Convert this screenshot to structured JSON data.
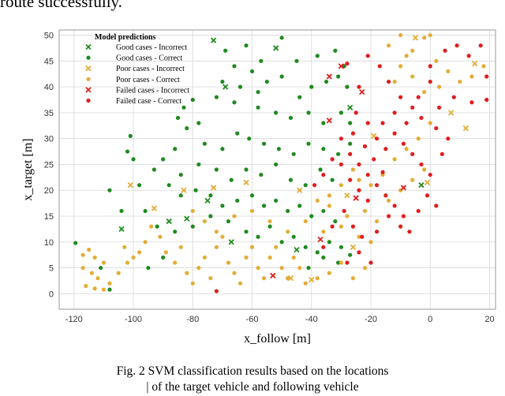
{
  "page": {
    "top_text": "route successfully.",
    "caption_line1": "Fig. 2 SVM classification results based on the locations",
    "caption_line2": "| of the target vehicle and following vehicle"
  },
  "colors": {
    "good": "#1f8a1f",
    "poor": "#e3ad35",
    "failed": "#e11d1d",
    "grid": "#d8d8d8",
    "frame": "#9a9a9a"
  },
  "chart_data": {
    "type": "scatter",
    "xlabel": "x_follow [m]",
    "ylabel": "x_target [m]",
    "xlim": [
      -125,
      22
    ],
    "ylim": [
      -3,
      51
    ],
    "xticks": [
      -120,
      -100,
      -80,
      -60,
      -40,
      -20,
      0,
      20
    ],
    "yticks": [
      0,
      5,
      10,
      15,
      20,
      25,
      30,
      35,
      40,
      45,
      50
    ],
    "grid": true,
    "legend": {
      "title": "Model predictions",
      "position": "top-left"
    },
    "series": [
      {
        "name": "Good cases - Incorrect",
        "marker": "x",
        "color": "#1f8a1f",
        "points": [
          [
            -73,
            49
          ],
          [
            -104,
            12.5
          ],
          [
            -69,
            40
          ],
          [
            -75,
            18
          ],
          [
            -82,
            14.5
          ],
          [
            -88,
            14
          ],
          [
            -67,
            10
          ],
          [
            -45,
            8.5
          ],
          [
            -27,
            36
          ],
          [
            -3,
            21
          ],
          [
            -52,
            47.5
          ]
        ]
      },
      {
        "name": "Good cases - Correct",
        "marker": "dot",
        "color": "#1f8a1f",
        "points": [
          [
            -69,
            47
          ],
          [
            -66,
            44
          ],
          [
            -62,
            48
          ],
          [
            -60,
            43
          ],
          [
            -57,
            45
          ],
          [
            -50,
            49.5
          ],
          [
            -45,
            45
          ],
          [
            -38,
            46
          ],
          [
            -32,
            47
          ],
          [
            -29,
            44
          ],
          [
            -70,
            41
          ],
          [
            -64,
            40
          ],
          [
            -58,
            39
          ],
          [
            -55,
            41
          ],
          [
            -50,
            42
          ],
          [
            -44,
            38
          ],
          [
            -40,
            40
          ],
          [
            -35,
            41
          ],
          [
            -31,
            42
          ],
          [
            -28,
            40
          ],
          [
            -72,
            38
          ],
          [
            -66,
            37
          ],
          [
            -58,
            36
          ],
          [
            -52,
            35
          ],
          [
            -47,
            34
          ],
          [
            -41,
            35
          ],
          [
            -36,
            33
          ],
          [
            -30,
            35
          ],
          [
            -27,
            33
          ],
          [
            -78,
            33
          ],
          [
            -82,
            32
          ],
          [
            -76,
            29
          ],
          [
            -70,
            28
          ],
          [
            -65,
            31
          ],
          [
            -61,
            30
          ],
          [
            -56,
            29
          ],
          [
            -51,
            28
          ],
          [
            -46,
            27
          ],
          [
            -41,
            29
          ],
          [
            -36,
            28
          ],
          [
            -31,
            27
          ],
          [
            -27,
            29
          ],
          [
            -86,
            28
          ],
          [
            -90,
            26
          ],
          [
            -84,
            23
          ],
          [
            -78,
            25
          ],
          [
            -72,
            24
          ],
          [
            -67,
            22
          ],
          [
            -62,
            24
          ],
          [
            -57,
            23
          ],
          [
            -52,
            25
          ],
          [
            -47,
            22
          ],
          [
            -42,
            21
          ],
          [
            -37,
            24
          ],
          [
            -33,
            22
          ],
          [
            -101,
            30.5
          ],
          [
            -102,
            27.5
          ],
          [
            -100,
            26
          ],
          [
            -108,
            20
          ],
          [
            -98,
            21
          ],
          [
            -93,
            24
          ],
          [
            -88,
            21
          ],
          [
            -84,
            19
          ],
          [
            -79,
            20
          ],
          [
            -74,
            19
          ],
          [
            -70,
            17
          ],
          [
            -65,
            18
          ],
          [
            -60,
            19
          ],
          [
            -56,
            17
          ],
          [
            -52,
            18
          ],
          [
            -48,
            16
          ],
          [
            -44,
            17
          ],
          [
            -40,
            15
          ],
          [
            -36,
            16
          ],
          [
            -32,
            14
          ],
          [
            -96,
            16
          ],
          [
            -92,
            13
          ],
          [
            -86,
            12
          ],
          [
            -80,
            13
          ],
          [
            -74,
            15
          ],
          [
            -68,
            14
          ],
          [
            -62,
            12
          ],
          [
            -58,
            11
          ],
          [
            -54,
            13
          ],
          [
            -50,
            10
          ],
          [
            -46,
            11
          ],
          [
            -42,
            9
          ],
          [
            -38,
            8
          ],
          [
            -34,
            10
          ],
          [
            -30,
            9
          ],
          [
            -27,
            7.5
          ],
          [
            -119.5,
            9.8
          ],
          [
            -104,
            16
          ],
          [
            -111,
            5
          ],
          [
            -108,
            0.8
          ],
          [
            -95,
            5
          ],
          [
            -90,
            7
          ],
          [
            -48,
            3
          ],
          [
            -41,
            5
          ],
          [
            -36,
            7
          ],
          [
            -31,
            6
          ],
          [
            -83,
            36
          ],
          [
            -80,
            37.5
          ],
          [
            -85,
            34
          ]
        ]
      },
      {
        "name": "Poor cases - Incorrect",
        "marker": "x",
        "color": "#e3ad35",
        "points": [
          [
            -101,
            21
          ],
          [
            -93,
            16.5
          ],
          [
            -83,
            20
          ],
          [
            -73,
            20.5
          ],
          [
            -62,
            21.5
          ],
          [
            -44,
            20
          ],
          [
            -40,
            2.7
          ],
          [
            -47,
            3
          ],
          [
            -53,
            3.5
          ],
          [
            -28,
            19
          ],
          [
            -26,
            9
          ],
          [
            -19,
            30.5
          ],
          [
            -5,
            49.5
          ],
          [
            7,
            35
          ],
          [
            12,
            32
          ],
          [
            15,
            44.5
          ],
          [
            -1,
            21.5
          ]
        ]
      },
      {
        "name": "Poor cases - Correct",
        "marker": "dot",
        "color": "#e3ad35",
        "points": [
          [
            -117,
            7.5
          ],
          [
            -115,
            8.5
          ],
          [
            -113,
            7
          ],
          [
            -110,
            6
          ],
          [
            -117,
            5
          ],
          [
            -114,
            4
          ],
          [
            -112,
            3
          ],
          [
            -116,
            1.5
          ],
          [
            -113,
            1
          ],
          [
            -110,
            0.8
          ],
          [
            -108,
            2
          ],
          [
            -105,
            4
          ],
          [
            -102,
            6
          ],
          [
            -100,
            7
          ],
          [
            -103,
            9
          ],
          [
            -98,
            8
          ],
          [
            -96,
            10
          ],
          [
            -94,
            13
          ],
          [
            -91,
            11
          ],
          [
            -89,
            8
          ],
          [
            -86,
            6
          ],
          [
            -84,
            9
          ],
          [
            -82,
            4
          ],
          [
            -80,
            2
          ],
          [
            -78,
            5
          ],
          [
            -76,
            7
          ],
          [
            -74,
            3
          ],
          [
            -72,
            9
          ],
          [
            -70,
            11
          ],
          [
            -68,
            6
          ],
          [
            -66,
            4
          ],
          [
            -64,
            2
          ],
          [
            -62,
            7
          ],
          [
            -60,
            9
          ],
          [
            -58,
            5
          ],
          [
            -56,
            3
          ],
          [
            -54,
            7
          ],
          [
            -52,
            9
          ],
          [
            -50,
            5
          ],
          [
            -48,
            3
          ],
          [
            -46,
            7
          ],
          [
            -44,
            5
          ],
          [
            -42,
            2
          ],
          [
            -38,
            3
          ],
          [
            -34,
            4
          ],
          [
            -30,
            6
          ],
          [
            -26,
            3
          ],
          [
            -22,
            5
          ],
          [
            -80,
            16
          ],
          [
            -76,
            14
          ],
          [
            -72,
            12
          ],
          [
            -66,
            15
          ],
          [
            -60,
            16
          ],
          [
            -54,
            14
          ],
          [
            -48,
            12
          ],
          [
            -42,
            14
          ],
          [
            -36,
            12
          ],
          [
            -30,
            13
          ],
          [
            -24,
            11
          ],
          [
            -20,
            10
          ],
          [
            -34,
            17
          ],
          [
            -28,
            15
          ],
          [
            -22,
            16
          ],
          [
            -18,
            14
          ],
          [
            -14,
            18
          ],
          [
            -10,
            20
          ],
          [
            -6,
            22
          ],
          [
            -2,
            24
          ],
          [
            -16,
            23
          ],
          [
            -12,
            26
          ],
          [
            -8,
            28
          ],
          [
            -4,
            30
          ],
          [
            0,
            33
          ],
          [
            -20,
            21
          ],
          [
            -24,
            22
          ],
          [
            -26,
            24
          ],
          [
            -30,
            21
          ],
          [
            -34,
            19
          ],
          [
            -38,
            18
          ],
          [
            -14,
            48
          ],
          [
            -10,
            50
          ],
          [
            -6,
            47
          ],
          [
            -2,
            49.5
          ],
          [
            2,
            45
          ],
          [
            6,
            43
          ],
          [
            10,
            41
          ],
          [
            14,
            42
          ],
          [
            18,
            44
          ],
          [
            3,
            40
          ],
          [
            -2,
            39
          ],
          [
            -6,
            42
          ],
          [
            -10,
            44
          ],
          [
            -12,
            41
          ],
          [
            -8,
            46
          ],
          [
            0,
            50
          ]
        ]
      },
      {
        "name": "Failed cases - Incorrect",
        "marker": "x",
        "color": "#e11d1d",
        "points": [
          [
            -34,
            42
          ],
          [
            -34,
            33.5
          ],
          [
            -30,
            44
          ],
          [
            -23,
            39
          ],
          [
            -25,
            18.5
          ],
          [
            -37,
            10.5
          ],
          [
            -53,
            3.5
          ],
          [
            -9,
            20.5
          ]
        ]
      },
      {
        "name": "Failed case - Correct",
        "marker": "dot",
        "color": "#e11d1d",
        "points": [
          [
            -28,
            44.5
          ],
          [
            -24,
            40
          ],
          [
            -21,
            46
          ],
          [
            -17,
            44
          ],
          [
            -14,
            41
          ],
          [
            -10,
            38
          ],
          [
            -6,
            36
          ],
          [
            -3,
            34
          ],
          [
            2,
            32
          ],
          [
            6,
            30
          ],
          [
            -25,
            35
          ],
          [
            -21,
            33
          ],
          [
            -18,
            30
          ],
          [
            -15,
            28
          ],
          [
            -12,
            31
          ],
          [
            -9,
            29
          ],
          [
            -6,
            27
          ],
          [
            -3,
            25
          ],
          [
            0,
            23
          ],
          [
            -30,
            30
          ],
          [
            -27,
            27
          ],
          [
            -24,
            25
          ],
          [
            -21,
            23
          ],
          [
            -18,
            21
          ],
          [
            -15,
            19
          ],
          [
            -12,
            17
          ],
          [
            -9,
            15
          ],
          [
            -30,
            25
          ],
          [
            -27,
            22
          ],
          [
            -24,
            20
          ],
          [
            -21,
            18
          ],
          [
            -33,
            26
          ],
          [
            -36,
            23
          ],
          [
            -39,
            21
          ],
          [
            -29,
            16
          ],
          [
            -26,
            13
          ],
          [
            -23,
            11
          ],
          [
            -33,
            13
          ],
          [
            -36,
            9
          ],
          [
            -18,
            12
          ],
          [
            -14,
            15
          ],
          [
            -10,
            13
          ],
          [
            -24,
            8
          ],
          [
            -28,
            6
          ],
          [
            -20,
            6
          ],
          [
            -72,
            0.5
          ],
          [
            0,
            44
          ],
          [
            5,
            47
          ],
          [
            9,
            48
          ],
          [
            13,
            46
          ],
          [
            17,
            48
          ],
          [
            19,
            42
          ],
          [
            3,
            36
          ],
          [
            8,
            38
          ],
          [
            14,
            37
          ],
          [
            19,
            37.5
          ],
          [
            -16,
            33
          ],
          [
            -12,
            35
          ],
          [
            -8,
            33
          ],
          [
            -4,
            38
          ],
          [
            0,
            41
          ],
          [
            4,
            27
          ],
          [
            -1,
            19
          ],
          [
            2,
            17
          ],
          [
            -4,
            16
          ],
          [
            -7,
            12
          ],
          [
            -16,
            23.5
          ],
          [
            -19,
            26
          ],
          [
            -22,
            28.5
          ],
          [
            -26,
            31
          ]
        ]
      }
    ]
  }
}
